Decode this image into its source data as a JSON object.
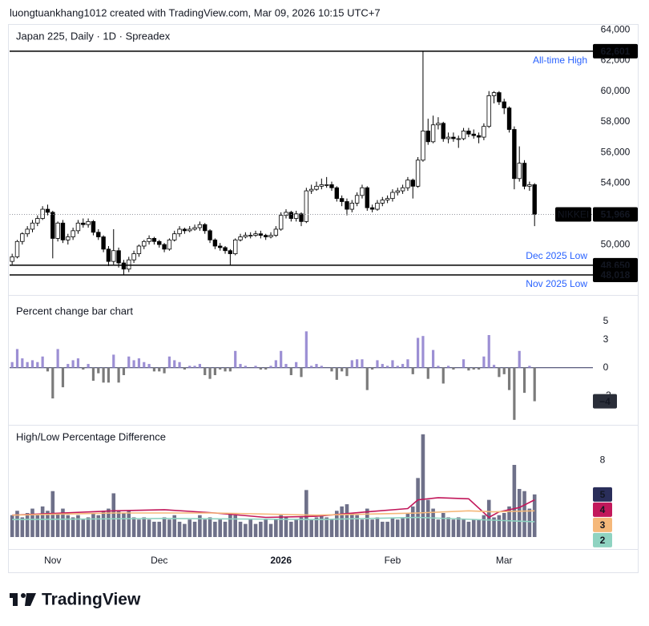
{
  "header": "luongtuankhang1012 created with TradingView.com, Mar 09, 2026 10:15 UTC+7",
  "footer": "TradingView",
  "x_axis": {
    "xlim": [
      -0.5,
      114.5
    ],
    "xticks": [
      {
        "value": 8,
        "label": "Nov"
      },
      {
        "value": 29,
        "label": "Dec"
      },
      {
        "value": 53,
        "label": "2026",
        "bold": true
      },
      {
        "value": 75,
        "label": "Feb"
      },
      {
        "value": 97,
        "label": "Mar"
      }
    ]
  },
  "chart_data": [
    {
      "type": "candlestick",
      "title": "Japan 225, Daily · 1D · Spreadex",
      "up_color": "#ffffff",
      "down_color": "#000000",
      "outline_color": "#000000",
      "ylim": [
        46870,
        64370
      ],
      "yticks": [
        {
          "value": 50000,
          "label": "50,000"
        },
        {
          "value": 52000,
          "label": "52,000"
        },
        {
          "value": 54000,
          "label": "54,000"
        },
        {
          "value": 56000,
          "label": "56,000"
        },
        {
          "value": 58000,
          "label": "58,000"
        },
        {
          "value": 60000,
          "label": "60,000"
        },
        {
          "value": 62000,
          "label": "62,000"
        },
        {
          "value": 64000,
          "label": "64,000"
        }
      ],
      "candles": [
        [
          48900,
          49400,
          48700,
          49200
        ],
        [
          49200,
          50300,
          49100,
          50200
        ],
        [
          50200,
          50800,
          50000,
          50700
        ],
        [
          50700,
          51200,
          50500,
          51000
        ],
        [
          51000,
          51600,
          50800,
          51400
        ],
        [
          51400,
          51900,
          51200,
          51700
        ],
        [
          51700,
          52500,
          51600,
          52300
        ],
        [
          52300,
          52600,
          51900,
          52100
        ],
        [
          52100,
          52200,
          49100,
          50400
        ],
        [
          50400,
          51500,
          50200,
          51400
        ],
        [
          51400,
          51600,
          50100,
          50300
        ],
        [
          50300,
          50700,
          50000,
          50500
        ],
        [
          50500,
          51100,
          50300,
          50900
        ],
        [
          50900,
          51600,
          50700,
          51400
        ],
        [
          51400,
          51700,
          51100,
          51300
        ],
        [
          51300,
          51700,
          51100,
          51500
        ],
        [
          51500,
          51600,
          50600,
          50800
        ],
        [
          50800,
          51000,
          50300,
          50500
        ],
        [
          50500,
          50600,
          49500,
          49700
        ],
        [
          49700,
          49900,
          48600,
          48900
        ],
        [
          48900,
          51000,
          48700,
          49600
        ],
        [
          49600,
          49800,
          48500,
          48800
        ],
        [
          48800,
          49000,
          48018,
          48400
        ],
        [
          48400,
          49200,
          48200,
          49000
        ],
        [
          49000,
          49600,
          48800,
          49400
        ],
        [
          49400,
          50000,
          49200,
          49900
        ],
        [
          49900,
          50300,
          49700,
          50200
        ],
        [
          50200,
          50600,
          50000,
          50400
        ],
        [
          50400,
          50500,
          50000,
          50200
        ],
        [
          50200,
          50300,
          49800,
          50000
        ],
        [
          50000,
          50100,
          49500,
          49700
        ],
        [
          49700,
          50400,
          49600,
          50300
        ],
        [
          50300,
          50900,
          50200,
          50700
        ],
        [
          50700,
          51200,
          50500,
          51000
        ],
        [
          51000,
          51100,
          50700,
          50900
        ],
        [
          50900,
          51200,
          50800,
          51000
        ],
        [
          51000,
          51300,
          50900,
          51100
        ],
        [
          51100,
          51500,
          50900,
          51300
        ],
        [
          51300,
          51400,
          50700,
          50900
        ],
        [
          50900,
          51000,
          50100,
          50300
        ],
        [
          50300,
          50400,
          49700,
          49900
        ],
        [
          49900,
          50100,
          49600,
          49800
        ],
        [
          49800,
          49900,
          49400,
          49600
        ],
        [
          49600,
          49700,
          48650,
          49400
        ],
        [
          49400,
          50400,
          49300,
          50300
        ],
        [
          50300,
          50700,
          50200,
          50500
        ],
        [
          50500,
          50800,
          50400,
          50600
        ],
        [
          50600,
          50800,
          50400,
          50600
        ],
        [
          50600,
          50900,
          50500,
          50700
        ],
        [
          50700,
          50900,
          50400,
          50600
        ],
        [
          50600,
          50700,
          50300,
          50500
        ],
        [
          50500,
          50800,
          50400,
          50600
        ],
        [
          50600,
          51200,
          50500,
          51000
        ],
        [
          51000,
          52100,
          50900,
          51900
        ],
        [
          51900,
          52300,
          51700,
          52100
        ],
        [
          52100,
          52200,
          51500,
          51700
        ],
        [
          51700,
          52200,
          51500,
          52000
        ],
        [
          52000,
          52100,
          51200,
          51500
        ],
        [
          51500,
          53700,
          51400,
          53500
        ],
        [
          53500,
          53900,
          53300,
          53600
        ],
        [
          53600,
          54100,
          53500,
          53800
        ],
        [
          53800,
          54300,
          53600,
          53900
        ],
        [
          53900,
          54400,
          53700,
          53900
        ],
        [
          53900,
          54100,
          53500,
          53700
        ],
        [
          53700,
          53800,
          52800,
          53000
        ],
        [
          53000,
          53200,
          52500,
          52800
        ],
        [
          52800,
          53000,
          51900,
          52300
        ],
        [
          52300,
          52900,
          52100,
          52700
        ],
        [
          52700,
          53400,
          52500,
          53200
        ],
        [
          53200,
          53900,
          53000,
          53700
        ],
        [
          53700,
          53800,
          52200,
          52400
        ],
        [
          52400,
          52600,
          52100,
          52300
        ],
        [
          52300,
          52900,
          52200,
          52700
        ],
        [
          52700,
          53100,
          52500,
          52900
        ],
        [
          52900,
          53200,
          52700,
          53000
        ],
        [
          53000,
          53600,
          52800,
          53400
        ],
        [
          53400,
          53700,
          53200,
          53500
        ],
        [
          53500,
          53900,
          53300,
          53700
        ],
        [
          53700,
          54400,
          53500,
          54200
        ],
        [
          54200,
          54300,
          53000,
          53800
        ],
        [
          53800,
          55700,
          53700,
          55500
        ],
        [
          55500,
          62601,
          55400,
          57400
        ],
        [
          57400,
          58200,
          56500,
          56700
        ],
        [
          56700,
          58400,
          56600,
          57800
        ],
        [
          57800,
          58300,
          57500,
          57900
        ],
        [
          57900,
          58000,
          56700,
          56900
        ],
        [
          56900,
          57300,
          56600,
          57000
        ],
        [
          57000,
          57300,
          56700,
          56900
        ],
        [
          56900,
          57100,
          56300,
          56900
        ],
        [
          56900,
          57600,
          56800,
          57400
        ],
        [
          57400,
          57600,
          57000,
          57200
        ],
        [
          57200,
          57500,
          56900,
          57100
        ],
        [
          57100,
          57300,
          56600,
          57000
        ],
        [
          57000,
          57900,
          56800,
          57700
        ],
        [
          57700,
          60000,
          57600,
          59700
        ],
        [
          59700,
          60000,
          59200,
          59900
        ],
        [
          59900,
          60000,
          59100,
          59300
        ],
        [
          59300,
          59500,
          58500,
          58900
        ],
        [
          58900,
          59000,
          57300,
          57500
        ],
        [
          57500,
          57700,
          53600,
          54300
        ],
        [
          54300,
          56400,
          54100,
          55300
        ],
        [
          55300,
          55500,
          53600,
          53800
        ],
        [
          53800,
          54100,
          53500,
          53900
        ],
        [
          53900,
          54000,
          51200,
          51966
        ]
      ],
      "levels": [
        {
          "name": "All-time High",
          "value": 62601,
          "label": "62,601",
          "text_side": "below"
        },
        {
          "name": "Dec 2025 Low",
          "value": 48650,
          "label": "48,650",
          "text_side": "above"
        },
        {
          "name": "Nov 2025 Low",
          "value": 48018,
          "label": "48,018",
          "text_side": "below"
        }
      ],
      "price_line": {
        "name": "NIKKEI",
        "value": 51966,
        "label": "51,966"
      }
    },
    {
      "type": "bar",
      "title": "Percent change bar chart",
      "positive_color": "#9c8fd4",
      "negative_color": "#7b7b7b",
      "ylim": [
        -5.7,
        7.2
      ],
      "yticks": [
        5,
        3,
        0,
        {
          "value": -3,
          "label": "−3"
        }
      ],
      "values": [
        0.6,
        2.0,
        1.0,
        0.6,
        0.8,
        0.6,
        1.2,
        -0.4,
        -3.3,
        2.0,
        -2.1,
        0.4,
        0.8,
        1.0,
        -0.2,
        0.4,
        -1.4,
        -0.6,
        -1.6,
        -1.6,
        1.4,
        -1.6,
        -0.8,
        1.2,
        0.8,
        1.0,
        0.6,
        0.4,
        -0.4,
        -0.4,
        -0.6,
        1.2,
        0.8,
        0.6,
        -0.2,
        0.2,
        0.2,
        0.4,
        -0.8,
        -1.2,
        -0.8,
        -0.2,
        -0.4,
        -0.4,
        1.8,
        0.4,
        0.2,
        0,
        0.2,
        -0.2,
        -0.2,
        0.2,
        0.8,
        1.8,
        0.4,
        -0.8,
        0.6,
        -1.0,
        3.9,
        0.2,
        0.4,
        0.2,
        0,
        -0.4,
        -1.3,
        -0.4,
        -0.9,
        0.8,
        0.9,
        0.9,
        -2.4,
        -0.2,
        0.8,
        0.4,
        0.2,
        0.8,
        0.2,
        0.4,
        0.9,
        -0.7,
        3.2,
        3.4,
        -1.2,
        1.9,
        0.2,
        -1.7,
        0.2,
        -0.2,
        0,
        0.9,
        -0.3,
        -0.2,
        -0.2,
        1.2,
        3.5,
        0.3,
        -1.0,
        -0.7,
        -2.4,
        -5.6,
        1.8,
        -2.7,
        0.2,
        -3.6
      ],
      "last_label": "−4"
    },
    {
      "type": "bar+line",
      "title": "High/Low Percentage Difference",
      "ylim": [
        1,
        10.9
      ],
      "yticks": [
        8
      ],
      "bars": {
        "color": "#6e7089",
        "last_color": "#2a2e5a",
        "last_label": "5",
        "values": [
          3.0,
          3.4,
          2.8,
          3.2,
          3.6,
          3.0,
          3.8,
          3.4,
          5.2,
          3.2,
          3.6,
          3.0,
          2.8,
          3.0,
          2.6,
          2.8,
          3.2,
          3.0,
          3.4,
          3.6,
          5.0,
          3.4,
          3.2,
          3.4,
          2.8,
          2.6,
          2.8,
          2.6,
          2.4,
          2.4,
          2.8,
          2.6,
          3.0,
          2.4,
          2.2,
          2.6,
          2.4,
          3.0,
          2.6,
          2.8,
          2.4,
          2.6,
          2.4,
          3.2,
          3.0,
          2.4,
          2.2,
          2.6,
          2.2,
          2.4,
          2.6,
          2.2,
          2.6,
          3.0,
          2.8,
          2.4,
          2.6,
          2.8,
          5.3,
          2.6,
          2.8,
          3.0,
          2.8,
          2.6,
          3.4,
          3.8,
          4.0,
          3.2,
          3.0,
          2.6,
          3.6,
          2.6,
          2.8,
          2.4,
          2.4,
          2.8,
          2.6,
          2.8,
          3.2,
          3.8,
          6.4,
          10.4,
          4.4,
          3.6,
          2.6,
          3.2,
          2.8,
          2.6,
          2.8,
          2.6,
          2.4,
          2.6,
          2.6,
          3.0,
          4.4,
          2.8,
          3.0,
          3.2,
          3.8,
          7.6,
          5.4,
          5.2,
          3.6,
          4.9
        ]
      },
      "lines": [
        {
          "color": "#c2185b",
          "last_label": "4",
          "x": [
            0,
            10,
            20,
            30,
            40,
            50,
            60,
            70,
            78,
            80,
            84,
            90,
            94,
            96,
            100,
            103
          ],
          "values": [
            3.0,
            3.2,
            3.4,
            3.5,
            3.2,
            2.8,
            2.9,
            3.3,
            3.6,
            4.4,
            4.6,
            4.5,
            2.8,
            3.3,
            3.7,
            4.4
          ]
        },
        {
          "color": "#f5b87a",
          "last_label": "3",
          "x": [
            0,
            20,
            40,
            60,
            80,
            90,
            95,
            103
          ],
          "values": [
            3.0,
            3.2,
            3.2,
            3.0,
            3.2,
            3.4,
            3.3,
            3.4
          ]
        },
        {
          "color": "#8fd3c1",
          "last_label": "2",
          "x": [
            0,
            30,
            60,
            80,
            103
          ],
          "values": [
            2.6,
            2.7,
            2.6,
            2.8,
            2.4
          ]
        }
      ]
    }
  ]
}
